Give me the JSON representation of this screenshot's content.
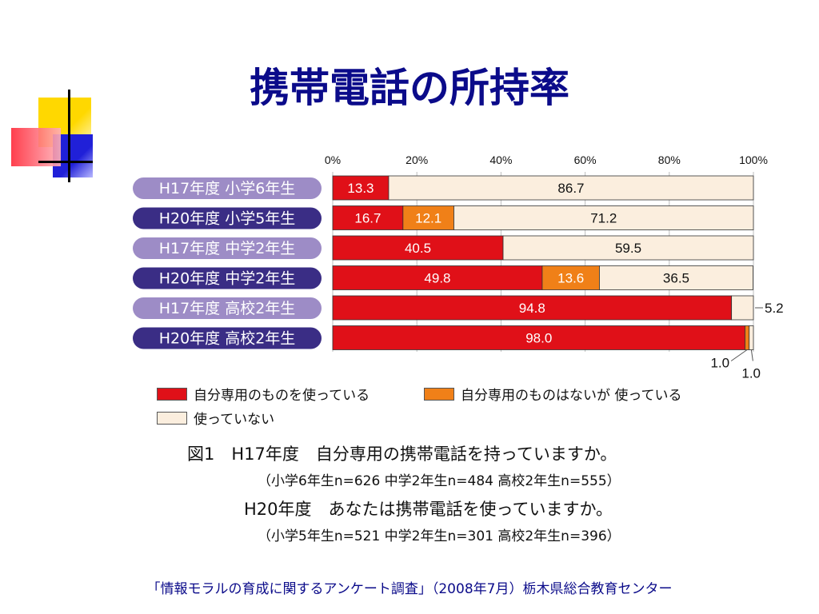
{
  "slide": {
    "title": "携帯電話の所持率",
    "source": "「情報モラルの育成に関するアンケート調査」（2008年7月）栃木県総合教育センター"
  },
  "caption": {
    "line1": "図1　H17年度　自分専用の携帯電話を持っていますか。",
    "line2": "（小学6年生n=626 中学2年生n=484 高校2年生n=555）",
    "line3": "H20年度　あなたは携帯電話を使っていますか。",
    "line4": "（小学5年生n=521 中学2年生n=301 高校2年生n=396）"
  },
  "legend": [
    {
      "label": "自分専用のものを使っている",
      "color": "#e01018"
    },
    {
      "label": "自分専用のものはないが 使っている",
      "color": "#f08018"
    },
    {
      "label": "使っていない",
      "color": "#fbeede"
    }
  ],
  "chart_data": {
    "type": "bar",
    "orientation": "horizontal",
    "stacked": true,
    "xlim": [
      0,
      100
    ],
    "x_ticks": [
      "0%",
      "20%",
      "40%",
      "60%",
      "80%",
      "100%"
    ],
    "grid": true,
    "categories": [
      "H17年度 小学6年生",
      "H20年度 小学5年生",
      "H17年度 中学2年生",
      "H20年度 中学2年生",
      "H17年度 高校2年生",
      "H20年度 高校2年生"
    ],
    "category_colors": [
      "#9d8cc6",
      "#3a2d85",
      "#9d8cc6",
      "#3a2d85",
      "#9d8cc6",
      "#3a2d85"
    ],
    "series": [
      {
        "name": "自分専用のものを使っている",
        "color": "#e01018",
        "values": [
          13.3,
          16.7,
          40.5,
          49.8,
          94.8,
          98.0
        ],
        "labels": [
          "13.3",
          "16.7",
          "40.5",
          "49.8",
          "94.8",
          "98.0"
        ]
      },
      {
        "name": "自分専用のものはないが 使っている",
        "color": "#f08018",
        "values": [
          0,
          12.1,
          0,
          13.6,
          0,
          1.0
        ],
        "labels": [
          "",
          "12.1",
          "",
          "13.6",
          "",
          "1.0"
        ]
      },
      {
        "name": "使っていない",
        "color": "#fbeede",
        "values": [
          86.7,
          71.2,
          59.5,
          36.5,
          5.2,
          1.0
        ],
        "labels": [
          "86.7",
          "71.2",
          "59.5",
          "36.5",
          "5.2",
          "1.0"
        ]
      }
    ]
  }
}
